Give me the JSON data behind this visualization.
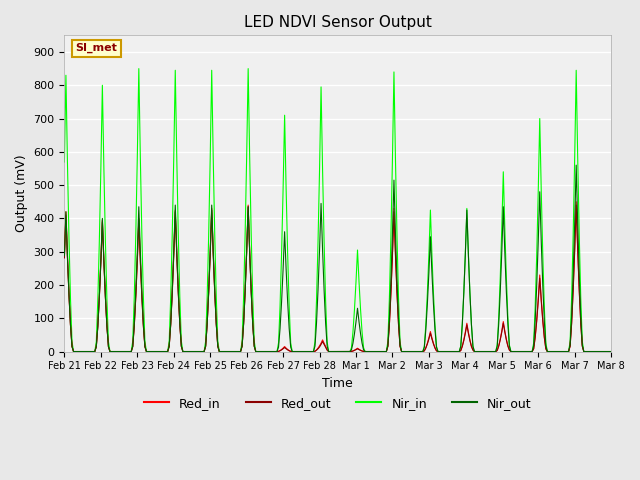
{
  "title": "LED NDVI Sensor Output",
  "xlabel": "Time",
  "ylabel": "Output (mV)",
  "ylim": [
    0,
    950
  ],
  "yticks": [
    0,
    100,
    200,
    300,
    400,
    500,
    600,
    700,
    800,
    900
  ],
  "x_labels": [
    "Feb 21",
    "Feb 22",
    "Feb 23",
    "Feb 24",
    "Feb 25",
    "Feb 26",
    "Feb 27",
    "Feb 28",
    "Mar 1",
    "Mar 2",
    "Mar 3",
    "Mar 4",
    "Mar 5",
    "Mar 6",
    "Mar 7",
    "Mar 8"
  ],
  "annotation_text": "SI_met",
  "annotation_bg": "#ffffcc",
  "annotation_border": "#cc9900",
  "annotation_text_color": "#8b0000",
  "colors": {
    "Red_in": "#ff0000",
    "Red_out": "#8b0000",
    "Nir_in": "#00ff00",
    "Nir_out": "#006400"
  },
  "bg_color": "#e8e8e8",
  "plot_bg": "#f0f0f0",
  "grid_color": "#ffffff",
  "events": [
    [
      1,
      420,
      410,
      830,
      420
    ],
    [
      25,
      395,
      390,
      800,
      400
    ],
    [
      49,
      400,
      395,
      850,
      435
    ],
    [
      73,
      425,
      420,
      845,
      440
    ],
    [
      97,
      430,
      425,
      845,
      440
    ],
    [
      121,
      440,
      435,
      850,
      435
    ],
    [
      145,
      15,
      12,
      710,
      360
    ],
    [
      169,
      25,
      20,
      795,
      445
    ],
    [
      193,
      10,
      8,
      305,
      130
    ],
    [
      217,
      430,
      420,
      840,
      515
    ],
    [
      241,
      60,
      55,
      425,
      345
    ],
    [
      265,
      85,
      80,
      430,
      425
    ],
    [
      289,
      90,
      85,
      540,
      435
    ],
    [
      313,
      230,
      220,
      700,
      480
    ],
    [
      337,
      450,
      440,
      845,
      560
    ]
  ],
  "n_days": 15,
  "hours_per_day": 24
}
